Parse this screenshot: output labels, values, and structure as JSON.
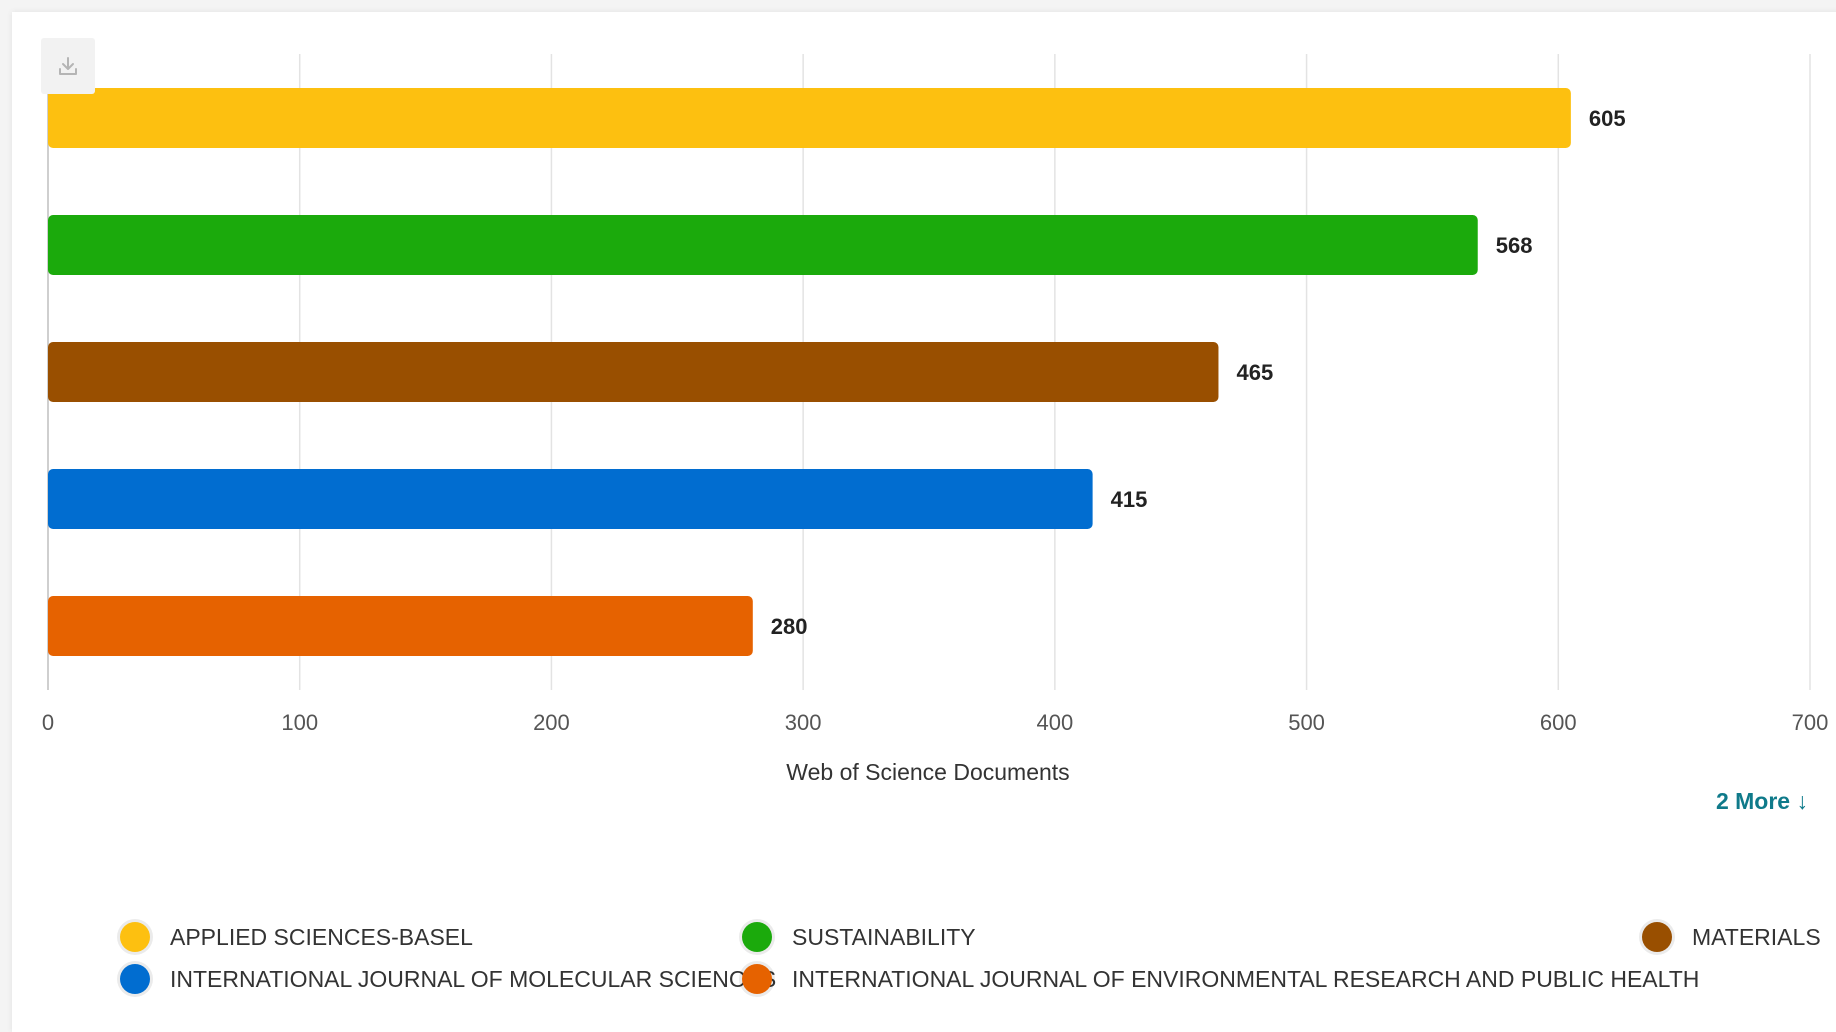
{
  "toolbar": {
    "download_icon": "download-icon"
  },
  "more_link": {
    "label": "2 More ↓"
  },
  "chart_data": {
    "type": "bar",
    "orientation": "horizontal",
    "categories": [
      "APPLIED SCIENCES-BASEL",
      "SUSTAINABILITY",
      "MATERIALS",
      "INTERNATIONAL JOURNAL OF MOLECULAR SCIENCES",
      "INTERNATIONAL JOURNAL OF ENVIRONMENTAL RESEARCH AND PUBLIC HEALTH"
    ],
    "values": [
      605,
      568,
      465,
      415,
      280
    ],
    "colors": [
      "#FDC010",
      "#1BAA0C",
      "#994F00",
      "#016DD0",
      "#E66200"
    ],
    "xlabel": "Web of Science Documents",
    "xlim": [
      0,
      700
    ],
    "xticks": [
      0,
      100,
      200,
      300,
      400,
      500,
      600,
      700
    ],
    "grid": true,
    "legend": "bottom",
    "data_labels": true
  }
}
